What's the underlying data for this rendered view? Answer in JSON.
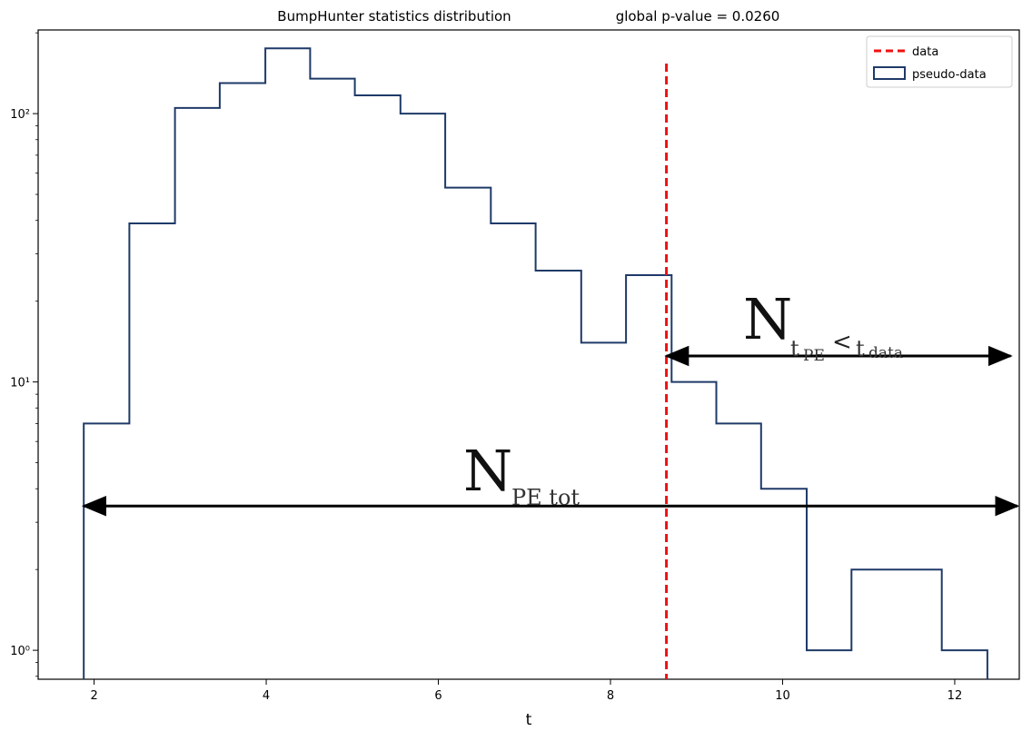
{
  "chart_data": {
    "type": "histogram",
    "title_left": "BumpHunter statistics distribution",
    "title_right": "global p-value = 0.0260",
    "xlabel": "t",
    "ylabel": "",
    "y_scale": "log",
    "xlim": [
      1.35,
      12.75
    ],
    "ylim": [
      0.78,
      205
    ],
    "x_ticks": [
      2,
      4,
      6,
      8,
      10,
      12
    ],
    "x_tick_labels": [
      "2",
      "4",
      "6",
      "8",
      "10",
      "12"
    ],
    "y_ticks": [
      1,
      10,
      100
    ],
    "y_tick_labels": [
      "10⁰",
      "10¹",
      "10²"
    ],
    "series": [
      {
        "name": "pseudo-data",
        "style": "step",
        "color": "#1f3a68",
        "bin_edges": [
          1.88,
          2.41,
          2.94,
          3.46,
          3.99,
          4.51,
          5.03,
          5.56,
          6.08,
          6.61,
          7.13,
          7.66,
          8.18,
          8.71,
          9.23,
          9.75,
          10.28,
          10.8,
          11.33,
          11.85,
          12.38
        ],
        "counts": [
          7,
          39,
          105,
          130,
          175,
          135,
          117,
          100,
          53,
          39,
          26,
          14,
          25,
          10,
          7,
          4,
          1,
          2,
          2,
          1
        ]
      },
      {
        "name": "data",
        "style": "vertical-dashed",
        "color": "#ee1111",
        "x": 8.65
      }
    ],
    "legend": {
      "position": "top-right",
      "entries": [
        {
          "label": "data",
          "kind": "dashed-line",
          "color": "#ee1111"
        },
        {
          "label": "pseudo-data",
          "kind": "box",
          "color": "#1f3a68"
        }
      ]
    },
    "annotations": [
      {
        "id": "n-tail",
        "main": "N",
        "sub_parts": [
          "t",
          "PE",
          "<",
          "t",
          "data"
        ],
        "arrow_x": [
          8.65,
          12.65
        ],
        "arrow_y": 12.5
      },
      {
        "id": "n-total",
        "main": "N",
        "sub": "PE tot",
        "arrow_x": [
          1.88,
          12.75
        ],
        "arrow_y": 3.45
      }
    ]
  }
}
